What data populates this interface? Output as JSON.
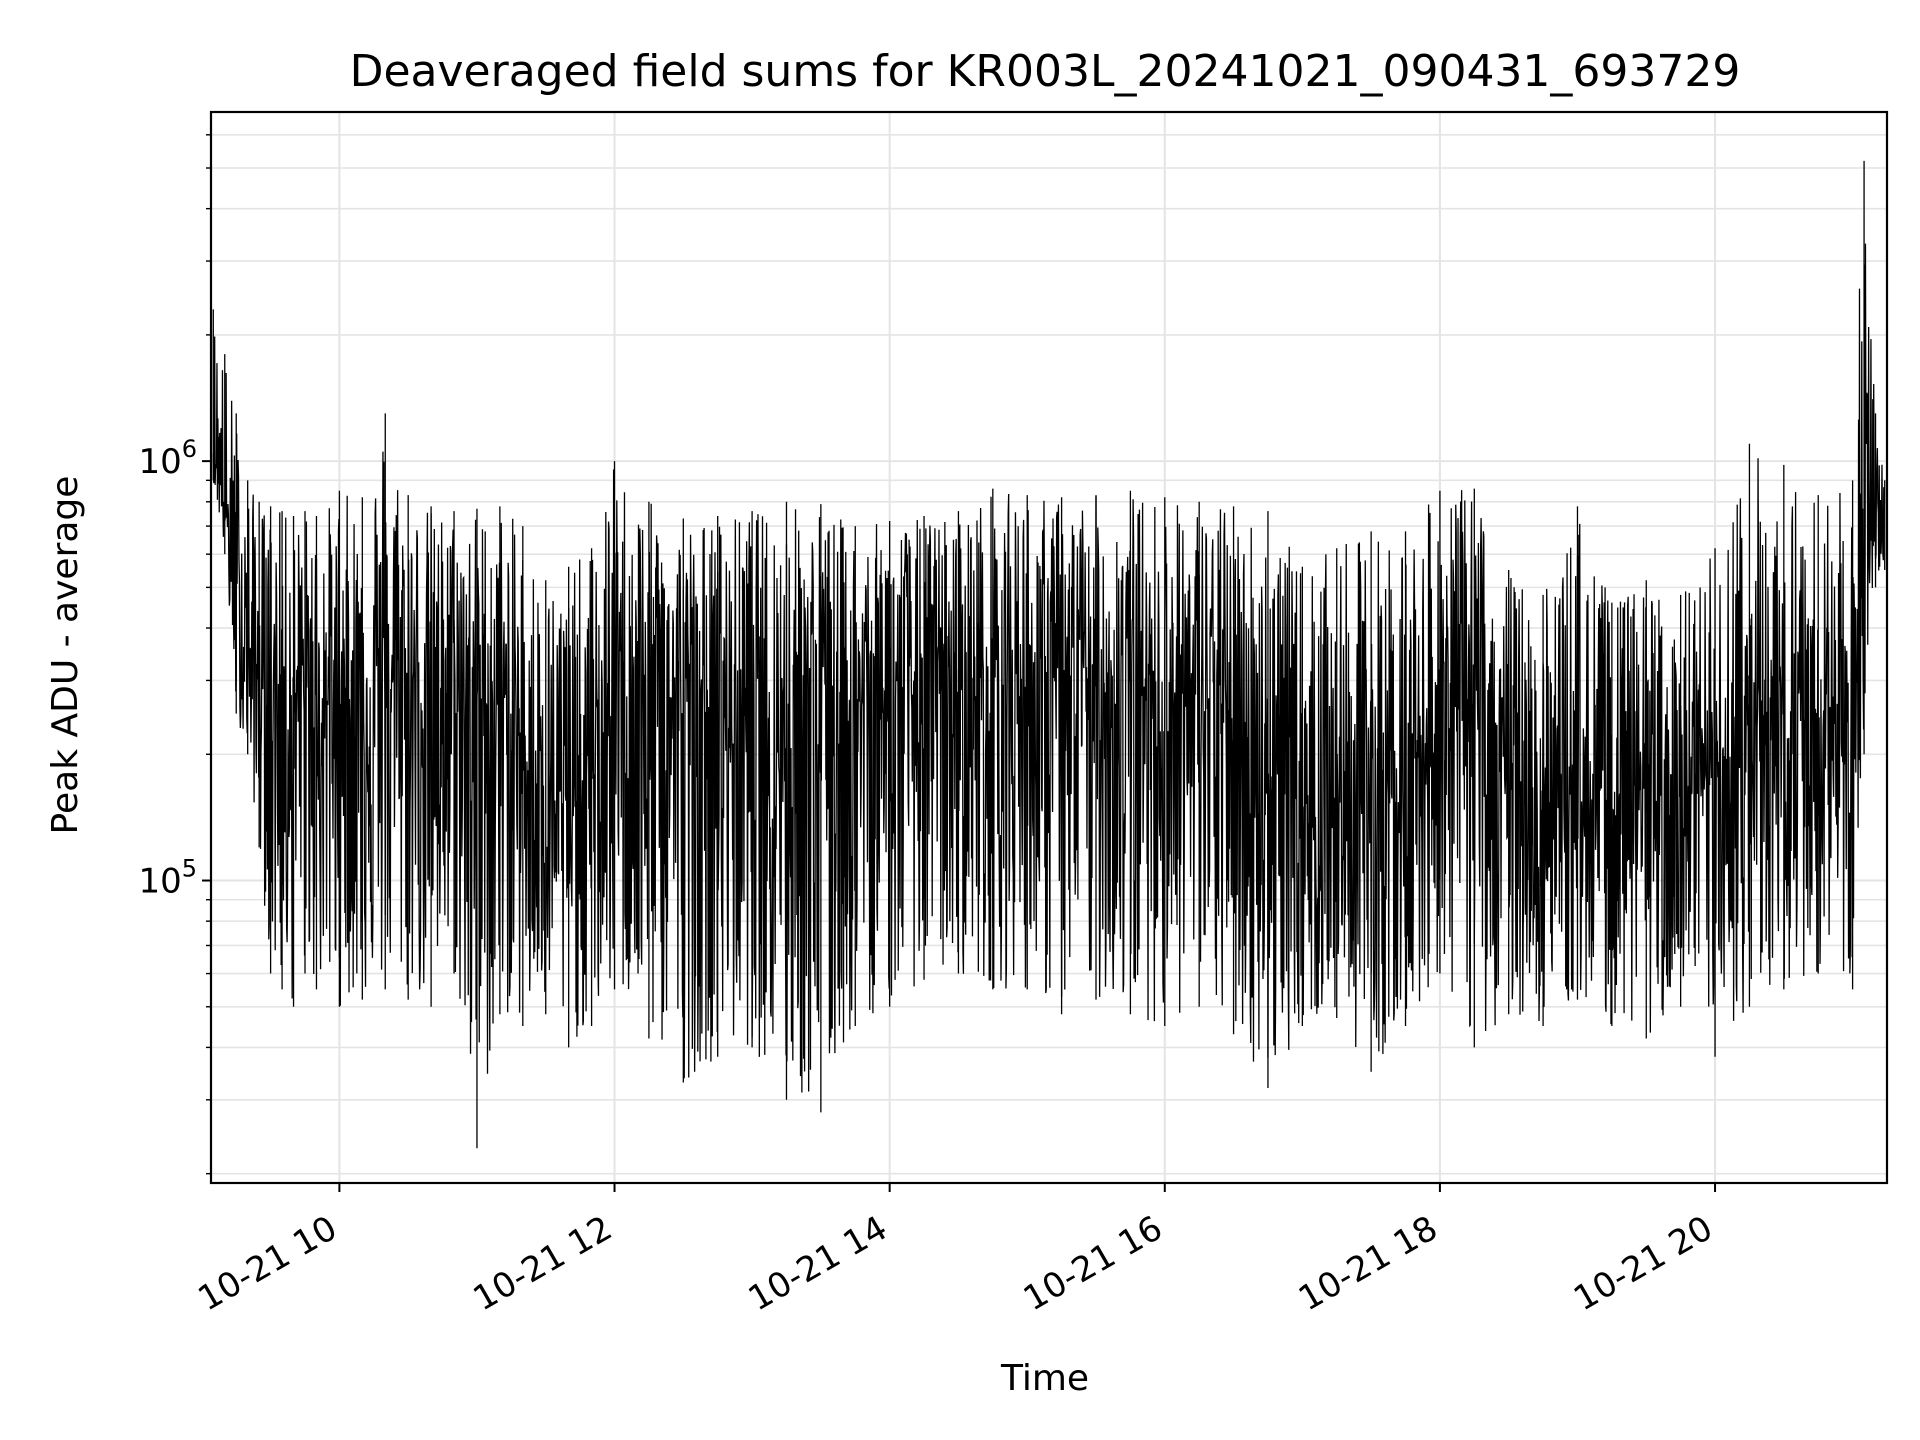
{
  "chart_data": {
    "type": "line",
    "title": "Deaveraged field sums for KR003L_20241021_090431_693729",
    "xlabel": "Time",
    "ylabel": "Peak ADU - average",
    "xscale": "time",
    "yscale": "log",
    "grid": true,
    "xlim": [
      "2024-10-21 09:04",
      "2024-10-21 21:15"
    ],
    "ylim": [
      19000,
      6800000
    ],
    "x_ticks": [
      {
        "time": "2024-10-21 10:00",
        "label": "10-21 10"
      },
      {
        "time": "2024-10-21 12:00",
        "label": "10-21 12"
      },
      {
        "time": "2024-10-21 14:00",
        "label": "10-21 14"
      },
      {
        "time": "2024-10-21 16:00",
        "label": "10-21 16"
      },
      {
        "time": "2024-10-21 18:00",
        "label": "10-21 18"
      },
      {
        "time": "2024-10-21 20:00",
        "label": "10-21 20"
      }
    ],
    "y_ticks": [
      {
        "value": 100000,
        "base": "10",
        "exp": "5"
      },
      {
        "value": 1000000,
        "base": "10",
        "exp": "6"
      }
    ],
    "series": [
      {
        "color": "#000000",
        "x": [
          "2024-10-21 09:05",
          "2024-10-21 09:10",
          "2024-10-21 09:15",
          "2024-10-21 09:20",
          "2024-10-21 09:25",
          "2024-10-21 09:30",
          "2024-10-21 09:35",
          "2024-10-21 09:40",
          "2024-10-21 09:45",
          "2024-10-21 09:50",
          "2024-10-21 10:00",
          "2024-10-21 10:10",
          "2024-10-21 10:20",
          "2024-10-21 10:30",
          "2024-10-21 10:40",
          "2024-10-21 10:50",
          "2024-10-21 11:00",
          "2024-10-21 11:10",
          "2024-10-21 11:20",
          "2024-10-21 11:30",
          "2024-10-21 11:40",
          "2024-10-21 11:50",
          "2024-10-21 12:00",
          "2024-10-21 12:15",
          "2024-10-21 12:30",
          "2024-10-21 12:45",
          "2024-10-21 13:00",
          "2024-10-21 13:15",
          "2024-10-21 13:30",
          "2024-10-21 13:45",
          "2024-10-21 14:00",
          "2024-10-21 14:15",
          "2024-10-21 14:30",
          "2024-10-21 14:45",
          "2024-10-21 15:00",
          "2024-10-21 15:15",
          "2024-10-21 15:30",
          "2024-10-21 15:45",
          "2024-10-21 16:00",
          "2024-10-21 16:15",
          "2024-10-21 16:30",
          "2024-10-21 16:45",
          "2024-10-21 17:00",
          "2024-10-21 17:15",
          "2024-10-21 17:30",
          "2024-10-21 17:45",
          "2024-10-21 18:00",
          "2024-10-21 18:15",
          "2024-10-21 18:30",
          "2024-10-21 18:45",
          "2024-10-21 19:00",
          "2024-10-21 19:15",
          "2024-10-21 19:30",
          "2024-10-21 19:45",
          "2024-10-21 20:00",
          "2024-10-21 20:15",
          "2024-10-21 20:30",
          "2024-10-21 20:45",
          "2024-10-21 21:00",
          "2024-10-21 21:05",
          "2024-10-21 21:10",
          "2024-10-21 21:14"
        ],
        "y_high": [
          2300000,
          1800000,
          1300000,
          900000,
          800000,
          780000,
          760000,
          740000,
          760000,
          740000,
          850000,
          820000,
          1300000,
          830000,
          780000,
          760000,
          770000,
          780000,
          700000,
          520000,
          560000,
          620000,
          1000000,
          800000,
          730000,
          740000,
          760000,
          800000,
          790000,
          700000,
          720000,
          740000,
          760000,
          860000,
          830000,
          820000,
          830000,
          850000,
          820000,
          800000,
          780000,
          760000,
          560000,
          620000,
          680000,
          680000,
          850000,
          860000,
          550000,
          480000,
          780000,
          460000,
          520000,
          480000,
          620000,
          1100000,
          980000,
          830000,
          900000,
          5200000,
          1300000,
          900000
        ],
        "y_low": [
          900000,
          600000,
          250000,
          200000,
          120000,
          60000,
          55000,
          50000,
          60000,
          55000,
          50000,
          52000,
          55000,
          52000,
          50000,
          60000,
          23000,
          48000,
          45000,
          48000,
          40000,
          45000,
          55000,
          42000,
          33000,
          38000,
          40000,
          30000,
          28000,
          45000,
          50000,
          58000,
          60000,
          55000,
          55000,
          48000,
          52000,
          48000,
          45000,
          50000,
          43000,
          32000,
          45000,
          47000,
          35000,
          45000,
          60000,
          40000,
          48000,
          45000,
          52000,
          45000,
          42000,
          50000,
          38000,
          50000,
          55000,
          60000,
          55000,
          200000,
          500000,
          550000
        ],
        "y_mid": [
          1100000,
          800000,
          450000,
          350000,
          300000,
          280000,
          280000,
          270000,
          280000,
          270000,
          270000,
          280000,
          300000,
          290000,
          280000,
          280000,
          270000,
          260000,
          200000,
          160000,
          150000,
          170000,
          260000,
          270000,
          260000,
          240000,
          250000,
          240000,
          240000,
          260000,
          270000,
          280000,
          280000,
          290000,
          300000,
          290000,
          290000,
          290000,
          280000,
          270000,
          240000,
          180000,
          150000,
          150000,
          160000,
          170000,
          250000,
          260000,
          180000,
          140000,
          160000,
          150000,
          160000,
          150000,
          170000,
          200000,
          230000,
          240000,
          230000,
          600000,
          800000,
          700000
        ]
      }
    ]
  }
}
